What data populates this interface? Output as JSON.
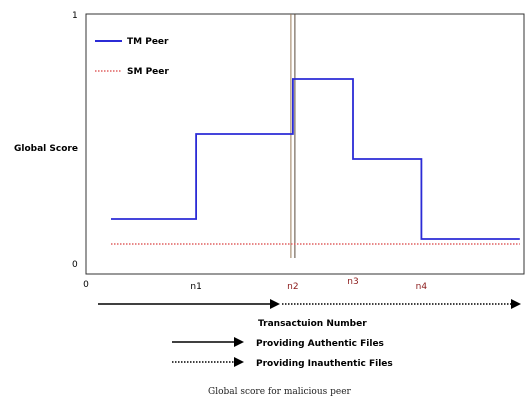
{
  "chart_data": {
    "type": "line",
    "title": "",
    "xlabel": "Transactuion Number",
    "ylabel": "Global Score",
    "ylim": [
      0,
      1
    ],
    "xlim": [
      0,
      5.25
    ],
    "y_ticks": [
      {
        "value": 0,
        "label": "0"
      },
      {
        "value": 1,
        "label": "1"
      }
    ],
    "x_ticks": [
      {
        "value": 0,
        "label": "0",
        "color": "#000000"
      },
      {
        "value": 1.32,
        "label": "n1",
        "color": "#000000"
      },
      {
        "value": 2.48,
        "label": "n2",
        "color": "#8b1a1a"
      },
      {
        "value": 3.2,
        "label": "n3",
        "color": "#8b1a1a"
      },
      {
        "value": 4.02,
        "label": "n4",
        "color": "#8b1a1a"
      }
    ],
    "series": [
      {
        "name": "TM Peer",
        "style": "solid",
        "color": "#2b2bd6",
        "x": [
          0.3,
          1.32,
          1.32,
          2.48,
          2.48,
          3.2,
          3.2,
          4.02,
          4.02,
          5.2
        ],
        "y": [
          0.18,
          0.18,
          0.52,
          0.52,
          0.74,
          0.74,
          0.42,
          0.42,
          0.1,
          0.1
        ]
      },
      {
        "name": "SM Peer",
        "style": "dotted",
        "color": "#e06060",
        "x": [
          0.3,
          5.2
        ],
        "y": [
          0.08,
          0.08
        ]
      }
    ],
    "markers": [
      {
        "x": 2.48,
        "color": "#9a7a5a",
        "label": "n2"
      }
    ],
    "legend_position": "top-left",
    "grid": false,
    "caption": "Global score for malicious peer"
  },
  "arrows_legend": [
    {
      "label": "Providing Authentic Files",
      "style": "solid"
    },
    {
      "label": "Providing Inauthentic Files",
      "style": "dotted"
    }
  ]
}
